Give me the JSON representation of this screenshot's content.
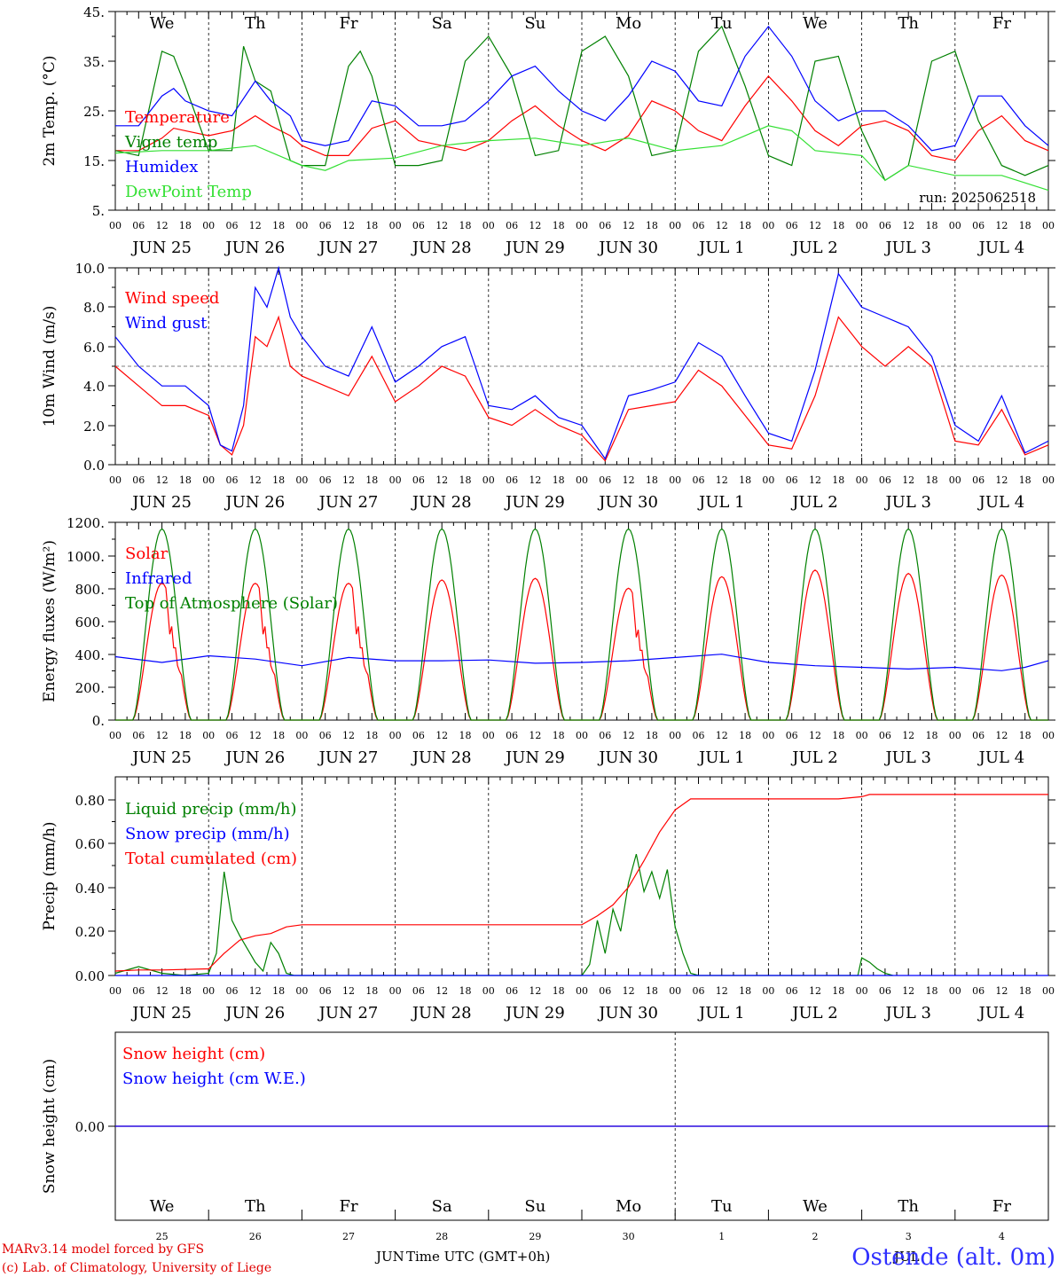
{
  "chart_data": [
    {
      "type": "line",
      "ylabel": "2m Temp. (°C)",
      "yticks": [
        "45.",
        "35.",
        "25.",
        "15.",
        "5."
      ],
      "ylim": [
        5,
        45
      ],
      "x_unit": "hours since Jun 25 00 UTC",
      "xlim": [
        0,
        240
      ],
      "annotation": "run: 2025062518",
      "show_day_names": true,
      "series": [
        {
          "name": "Temperature",
          "color": "#ff0000",
          "x": [
            0,
            6,
            12,
            15,
            18,
            24,
            30,
            36,
            40,
            45,
            48,
            54,
            60,
            66,
            72,
            78,
            84,
            90,
            96,
            102,
            108,
            114,
            120,
            126,
            132,
            138,
            144,
            150,
            156,
            162,
            168,
            174,
            180,
            186,
            192,
            198,
            204,
            210,
            216,
            222,
            228,
            234,
            240
          ],
          "y": [
            17,
            17,
            19.5,
            21.5,
            21,
            20,
            21,
            24,
            22,
            20,
            18,
            16,
            16,
            21.5,
            23,
            19,
            18,
            17,
            19,
            23,
            26,
            22,
            19,
            17,
            20,
            27,
            25,
            21,
            19,
            26,
            32,
            27,
            21,
            18,
            22,
            23,
            21,
            16,
            15,
            21,
            24,
            19,
            17
          ]
        },
        {
          "name": "Vigne temp",
          "color": "#008000",
          "x": [
            0,
            6,
            12,
            15,
            18,
            24,
            30,
            33,
            36,
            40,
            45,
            48,
            54,
            60,
            63,
            66,
            72,
            78,
            84,
            90,
            96,
            102,
            108,
            114,
            120,
            126,
            132,
            138,
            144,
            150,
            156,
            162,
            168,
            174,
            180,
            186,
            192,
            198,
            204,
            210,
            216,
            222,
            228,
            234,
            240
          ],
          "y": [
            17,
            16,
            37,
            36,
            30,
            17,
            17,
            38,
            31,
            29,
            15,
            14,
            14,
            34,
            37,
            32,
            14,
            14,
            15,
            35,
            40,
            32,
            16,
            17,
            37,
            40,
            32,
            16,
            17,
            37,
            42,
            30,
            16,
            14,
            35,
            36,
            21,
            11,
            14,
            35,
            37,
            23,
            14,
            12,
            14
          ]
        },
        {
          "name": "Humidex",
          "color": "#0000ff",
          "x": [
            0,
            6,
            12,
            15,
            18,
            24,
            30,
            36,
            40,
            45,
            48,
            54,
            60,
            66,
            72,
            78,
            84,
            90,
            96,
            102,
            108,
            114,
            120,
            126,
            132,
            138,
            144,
            150,
            156,
            162,
            168,
            174,
            180,
            186,
            192,
            198,
            204,
            210,
            216,
            222,
            228,
            234,
            240
          ],
          "y": [
            22,
            22,
            28,
            29.5,
            27,
            25,
            24,
            31,
            27,
            24,
            19,
            18,
            19,
            27,
            26,
            22,
            22,
            23,
            27,
            32,
            34,
            29,
            25,
            23,
            28,
            35,
            33,
            27,
            26,
            36,
            42,
            36,
            27,
            23,
            25,
            25,
            22,
            17,
            18,
            28,
            28,
            22,
            18
          ]
        },
        {
          "name": "DewPoint Temp",
          "color": "#33e033",
          "x": [
            0,
            12,
            24,
            36,
            48,
            54,
            60,
            72,
            84,
            96,
            108,
            120,
            132,
            144,
            156,
            168,
            174,
            180,
            192,
            198,
            204,
            216,
            228,
            240
          ],
          "y": [
            16.5,
            17,
            17,
            18,
            14,
            13,
            15,
            15.5,
            18,
            19,
            19.5,
            18,
            19.5,
            17,
            18,
            22,
            21,
            17,
            16,
            11,
            14,
            12,
            12,
            9
          ]
        }
      ]
    },
    {
      "type": "line",
      "ylabel": "10m Wind (m/s)",
      "yticks": [
        "10.0",
        "8.0",
        "6.0",
        "4.0",
        "2.0",
        "0.0"
      ],
      "ylim": [
        0,
        10
      ],
      "xlim": [
        0,
        240
      ],
      "reference_line": 5,
      "series": [
        {
          "name": "Wind speed",
          "color": "#ff0000",
          "x": [
            0,
            6,
            12,
            18,
            24,
            27,
            30,
            33,
            36,
            39,
            42,
            45,
            48,
            54,
            60,
            66,
            72,
            78,
            84,
            90,
            96,
            102,
            108,
            114,
            120,
            126,
            132,
            138,
            144,
            150,
            156,
            162,
            168,
            174,
            180,
            186,
            192,
            198,
            204,
            210,
            216,
            222,
            228,
            234,
            240
          ],
          "y": [
            5,
            4,
            3,
            3,
            2.5,
            1,
            0.5,
            2,
            6.5,
            6,
            7.5,
            5,
            4.5,
            4,
            3.5,
            5.5,
            3.2,
            4,
            5,
            4.5,
            2.4,
            2,
            2.8,
            2,
            1.5,
            0.2,
            2.8,
            3,
            3.2,
            4.8,
            4,
            2.5,
            1,
            0.8,
            3.5,
            7.5,
            6,
            5,
            6,
            5,
            1.2,
            1,
            2.8,
            0.5,
            1
          ]
        },
        {
          "name": "Wind gust",
          "color": "#0000ff",
          "x": [
            0,
            6,
            12,
            18,
            24,
            27,
            30,
            33,
            36,
            39,
            42,
            45,
            48,
            54,
            60,
            66,
            72,
            78,
            84,
            90,
            96,
            102,
            108,
            114,
            120,
            126,
            132,
            138,
            144,
            150,
            156,
            162,
            168,
            174,
            180,
            186,
            192,
            198,
            204,
            210,
            216,
            222,
            228,
            234,
            240
          ],
          "y": [
            6.5,
            5,
            4,
            4,
            3,
            1,
            0.7,
            3,
            9,
            8,
            10,
            7.5,
            6.5,
            5,
            4.5,
            7,
            4.2,
            5,
            6,
            6.5,
            3,
            2.8,
            3.5,
            2.4,
            2,
            0.3,
            3.5,
            3.8,
            4.2,
            6.2,
            5.5,
            3.5,
            1.6,
            1.2,
            4.8,
            9.7,
            8,
            7.5,
            7,
            5.5,
            2,
            1.2,
            3.5,
            0.6,
            1.2
          ]
        }
      ]
    },
    {
      "type": "line",
      "ylabel": "Energy fluxes (W/m²)",
      "yticks": [
        "1200.",
        "1000.",
        "800.",
        "600.",
        "400.",
        "200.",
        "0."
      ],
      "ylim": [
        0,
        1200
      ],
      "xlim": [
        0,
        240
      ],
      "series": [
        {
          "name": "Solar",
          "color": "#ff0000",
          "daily_peaks": [
            830,
            830,
            830,
            850,
            860,
            800,
            870,
            910,
            890,
            880
          ]
        },
        {
          "name": "Infrared",
          "color": "#0000ff",
          "x": [
            0,
            12,
            24,
            36,
            48,
            60,
            72,
            84,
            96,
            108,
            120,
            132,
            144,
            156,
            168,
            180,
            192,
            204,
            216,
            228,
            234,
            240
          ],
          "y": [
            385,
            350,
            390,
            370,
            330,
            380,
            360,
            360,
            365,
            345,
            350,
            360,
            380,
            400,
            350,
            330,
            320,
            310,
            320,
            300,
            320,
            360
          ]
        },
        {
          "name": "Top of Atmosphere (Solar)",
          "color": "#008000",
          "daily_peak": 1160
        }
      ]
    },
    {
      "type": "line",
      "ylabel": "Precip (mm/h)",
      "yticks": [
        "0.80",
        "0.60",
        "0.40",
        "0.20",
        "0.00"
      ],
      "ylim": [
        0,
        0.9
      ],
      "xlim": [
        0,
        240
      ],
      "series": [
        {
          "name": "Liquid precip (mm/h)",
          "color": "#008000",
          "x": [
            0,
            6,
            12,
            18,
            24,
            26,
            28,
            30,
            32,
            34,
            36,
            38,
            40,
            42,
            44,
            46,
            48,
            120,
            122,
            124,
            126,
            128,
            130,
            132,
            134,
            136,
            138,
            140,
            142,
            144,
            146,
            148,
            150,
            191,
            192,
            194,
            196,
            198,
            200
          ],
          "y": [
            0.01,
            0.04,
            0.01,
            0,
            0.01,
            0.1,
            0.47,
            0.25,
            0.18,
            0.12,
            0.06,
            0.02,
            0.15,
            0.1,
            0.01,
            0,
            0,
            0,
            0.05,
            0.25,
            0.1,
            0.3,
            0.2,
            0.42,
            0.55,
            0.38,
            0.47,
            0.35,
            0.48,
            0.22,
            0.1,
            0.01,
            0,
            0,
            0.08,
            0.06,
            0.03,
            0.01,
            0
          ]
        },
        {
          "name": "Snow precip (mm/h)",
          "color": "#0000ff",
          "x": [
            0,
            240
          ],
          "y": [
            0,
            0
          ]
        },
        {
          "name": "Total cumulated (cm)",
          "color": "#ff0000",
          "x": [
            0,
            6,
            12,
            24,
            28,
            32,
            36,
            40,
            44,
            48,
            120,
            124,
            128,
            132,
            136,
            140,
            144,
            148,
            150,
            186,
            192,
            194,
            240
          ],
          "y": [
            0.02,
            0.025,
            0.025,
            0.03,
            0.1,
            0.16,
            0.18,
            0.19,
            0.22,
            0.23,
            0.23,
            0.27,
            0.32,
            0.4,
            0.52,
            0.65,
            0.75,
            0.8,
            0.8,
            0.8,
            0.81,
            0.82,
            0.82
          ]
        }
      ]
    },
    {
      "type": "line",
      "ylabel": "Snow height (cm)",
      "yticks": [
        "0.00"
      ],
      "xlim": [
        0,
        240
      ],
      "series": [
        {
          "name": "Snow height (cm)",
          "color": "#ff0000",
          "x": [
            0,
            240
          ],
          "y": [
            0,
            0
          ]
        },
        {
          "name": "Snow height (cm W.E.)",
          "color": "#0000ff",
          "x": [
            0,
            240
          ],
          "y": [
            0,
            0
          ]
        }
      ]
    }
  ],
  "days": [
    {
      "abbr": "We",
      "date": "JUN 25",
      "num": "25",
      "weekend": false
    },
    {
      "abbr": "Th",
      "date": "JUN 26",
      "num": "26",
      "weekend": false
    },
    {
      "abbr": "Fr",
      "date": "JUN 27",
      "num": "27",
      "weekend": false
    },
    {
      "abbr": "Sa",
      "date": "JUN 28",
      "num": "28",
      "weekend": true
    },
    {
      "abbr": "Su",
      "date": "JUN 29",
      "num": "29",
      "weekend": true
    },
    {
      "abbr": "Mo",
      "date": "JUN 30",
      "num": "30",
      "weekend": false
    },
    {
      "abbr": "Tu",
      "date": "JUL  1",
      "num": "1",
      "weekend": false
    },
    {
      "abbr": "We",
      "date": "JUL  2",
      "num": "2",
      "weekend": false
    },
    {
      "abbr": "Th",
      "date": "JUL  3",
      "num": "3",
      "weekend": false
    },
    {
      "abbr": "Fr",
      "date": "JUL  4",
      "num": "4",
      "weekend": false
    }
  ],
  "hour_labels": [
    "00",
    "06",
    "12",
    "18"
  ],
  "last_hour_label": "00",
  "colors": {
    "weekday": "#000000",
    "weekend": "#ff0000",
    "title": "#3030ff"
  },
  "footer": {
    "credit_line1": "MARv3.14 model forced by GFS",
    "credit_line2": "(c) Lab. of Climatology, University of Liege",
    "month_jun": "JUN",
    "month_jul": "JUL",
    "xlabel": "Time UTC (GMT+0h)",
    "station": "Ostende (alt. 0m)"
  }
}
